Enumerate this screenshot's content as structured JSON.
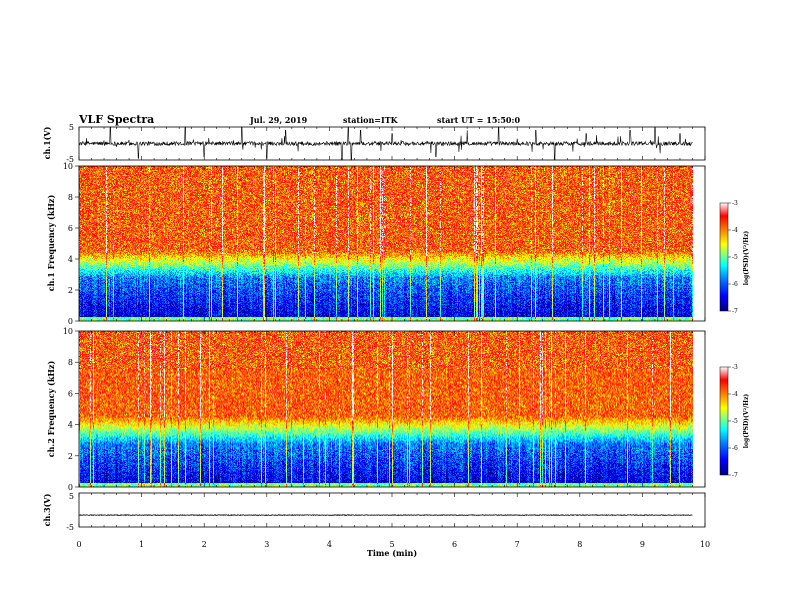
{
  "header": {
    "title": "VLF Spectra",
    "date": "Jul. 29, 2019",
    "station": "station=ITK",
    "start_time": "start UT = 15:50:0"
  },
  "chart_data": [
    {
      "type": "line",
      "name": "ch1-waveform",
      "ylabel": "ch.1(V)",
      "ylim": [
        -5,
        5
      ],
      "y_ticks": [
        "5",
        "-5"
      ],
      "xlim": [
        0,
        10
      ],
      "baseline": 0,
      "noise_amplitude": 0.6,
      "spikes": [
        {
          "x": 0.5,
          "y": 5
        },
        {
          "x": 0.95,
          "y": -4.5
        },
        {
          "x": 1.7,
          "y": 5
        },
        {
          "x": 2.0,
          "y": -4
        },
        {
          "x": 2.6,
          "y": 5
        },
        {
          "x": 3.0,
          "y": -4.5
        },
        {
          "x": 3.3,
          "y": 4
        },
        {
          "x": 4.2,
          "y": -5
        },
        {
          "x": 4.3,
          "y": 5
        },
        {
          "x": 4.35,
          "y": -5
        },
        {
          "x": 4.5,
          "y": 4
        },
        {
          "x": 5.0,
          "y": 3
        },
        {
          "x": 5.7,
          "y": -4
        },
        {
          "x": 6.2,
          "y": 4
        },
        {
          "x": 6.7,
          "y": 5
        },
        {
          "x": 7.3,
          "y": 4
        },
        {
          "x": 7.6,
          "y": -5
        },
        {
          "x": 8.1,
          "y": 3
        },
        {
          "x": 8.8,
          "y": 4
        },
        {
          "x": 9.2,
          "y": 5
        },
        {
          "x": 9.6,
          "y": 3
        }
      ]
    },
    {
      "type": "heatmap",
      "name": "ch1-spectrogram",
      "ylabel": "ch.1 Frequency (kHz)",
      "y_ticks": [
        "0",
        "2",
        "4",
        "6",
        "8",
        "10"
      ],
      "ylim": [
        0,
        10
      ],
      "xlim": [
        0,
        10
      ],
      "data_end_min": 9.8,
      "colorbar": {
        "label": "log(PSD)(V²/Hz)",
        "range": [
          -7,
          -3
        ],
        "ticks": [
          "-3",
          "-4",
          "-5",
          "-6",
          "-7"
        ]
      }
    },
    {
      "type": "heatmap",
      "name": "ch2-spectrogram",
      "ylabel": "ch.2 Frequency (kHz)",
      "y_ticks": [
        "0",
        "2",
        "4",
        "6",
        "8",
        "10"
      ],
      "ylim": [
        0,
        10
      ],
      "xlim": [
        0,
        10
      ],
      "data_end_min": 9.8,
      "colorbar": {
        "label": "log(PSD)(V²/Hz)",
        "range": [
          -7,
          -3
        ],
        "ticks": [
          "-3",
          "-4",
          "-5",
          "-6",
          "-7"
        ]
      }
    },
    {
      "type": "line",
      "name": "ch3-waveform",
      "ylabel": "ch.3(V)",
      "ylim": [
        -5,
        5
      ],
      "y_ticks": [
        "5",
        "-5"
      ],
      "xlim": [
        0,
        10
      ],
      "baseline": -1.5,
      "noise_amplitude": 0.1
    }
  ],
  "x_axis": {
    "label": "Time (min)",
    "ticks": [
      "0",
      "1",
      "2",
      "3",
      "4",
      "5",
      "6",
      "7",
      "8",
      "9",
      "10"
    ]
  },
  "colors": {
    "scale": [
      "#00007f",
      "#0000ff",
      "#0080ff",
      "#00ffff",
      "#80ff80",
      "#ffff00",
      "#ff8000",
      "#ff0000",
      "#ffffff"
    ]
  }
}
